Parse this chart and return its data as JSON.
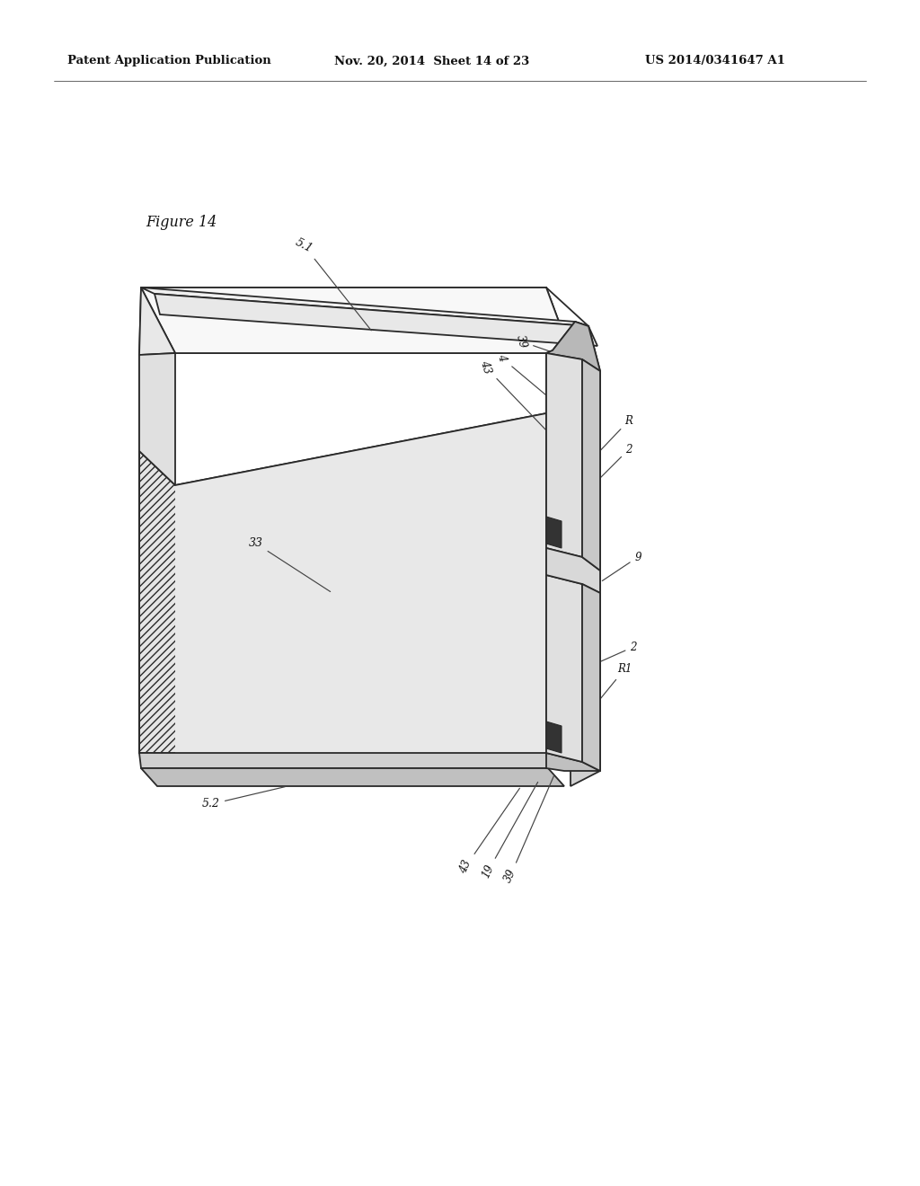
{
  "header_left": "Patent Application Publication",
  "header_center": "Nov. 20, 2014  Sheet 14 of 23",
  "header_right": "US 2014/0341647 A1",
  "figure_label": "Figure 14",
  "bg_color": "#ffffff",
  "line_color": "#2a2a2a",
  "fill_white": "#fafafa",
  "fill_light": "#eeeeee",
  "fill_mid": "#d8d8d8",
  "fill_dark": "#444444",
  "hatch_color": "#777777"
}
